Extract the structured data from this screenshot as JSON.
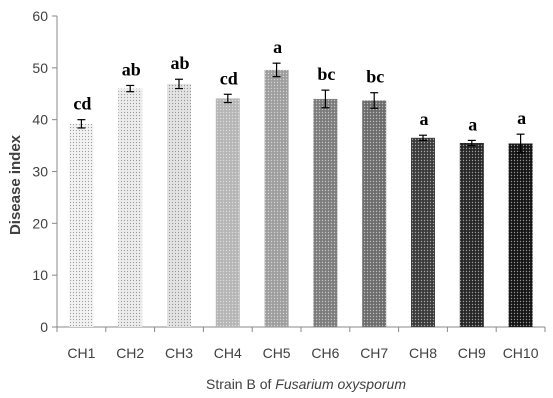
{
  "chart_data": {
    "type": "bar",
    "title": "",
    "ylabel": "Disease index",
    "xlabel_prefix": "Strain B of ",
    "xlabel_italic": "Fusarium oxysporum",
    "ylim": [
      0,
      60
    ],
    "yticks": [
      "0",
      "10",
      "20",
      "30",
      "40",
      "50",
      "60"
    ],
    "categories": [
      "CH1",
      "CH2",
      "CH3",
      "CH4",
      "CH5",
      "CH6",
      "CH7",
      "CH8",
      "CH9",
      "CH10"
    ],
    "values": [
      39.2,
      46.0,
      46.9,
      44.1,
      49.6,
      44.0,
      43.7,
      36.5,
      35.5,
      35.4
    ],
    "errors": [
      0.8,
      0.6,
      0.9,
      0.8,
      1.3,
      1.7,
      1.5,
      0.5,
      0.5,
      1.8
    ],
    "significance": [
      "cd",
      "ab",
      "ab",
      "cd",
      "a",
      "bc",
      "bc",
      "a",
      "a",
      "a"
    ],
    "bar_colors": [
      "#f2f2f2",
      "#ececec",
      "#e3e3e3",
      "#b5b5b5",
      "#9d9d9d",
      "#7c7c7c",
      "#6c6c6c",
      "#3a3a3a",
      "#262626",
      "#141414"
    ],
    "grid": false,
    "legend": "none"
  }
}
